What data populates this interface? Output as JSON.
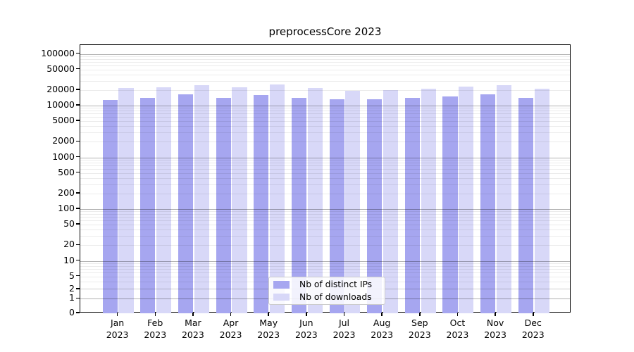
{
  "chart_data": {
    "type": "bar",
    "title": "preprocessCore 2023",
    "xlabel": "",
    "ylabel": "",
    "categories": [
      "Jan",
      "Feb",
      "Mar",
      "Apr",
      "May",
      "Jun",
      "Jul",
      "Aug",
      "Sep",
      "Oct",
      "Nov",
      "Dec"
    ],
    "category_sublabel": "2023",
    "series": [
      {
        "name": "Nb of distinct IPs",
        "color": "#a6a6f0",
        "values": [
          13000,
          14200,
          16600,
          14300,
          16000,
          14100,
          13300,
          13400,
          14300,
          14800,
          16400,
          13900
        ]
      },
      {
        "name": "Nb of downloads",
        "color": "#d8d8f8",
        "values": [
          21800,
          22500,
          25100,
          22500,
          25200,
          21800,
          19600,
          20200,
          21300,
          23500,
          25000,
          21000
        ]
      }
    ],
    "y_scale": "log-with-zero",
    "y_ticks": [
      0,
      1,
      2,
      5,
      10,
      20,
      50,
      100,
      200,
      500,
      1000,
      2000,
      5000,
      10000,
      20000,
      50000,
      100000
    ],
    "ylim": [
      0,
      150000
    ],
    "grid": true,
    "gridline_minor_steps": [
      2,
      3,
      4,
      5,
      6,
      7,
      8,
      9
    ],
    "legend_position": "lower center",
    "background_color": "#ffffff",
    "spine_color": "#000000"
  }
}
